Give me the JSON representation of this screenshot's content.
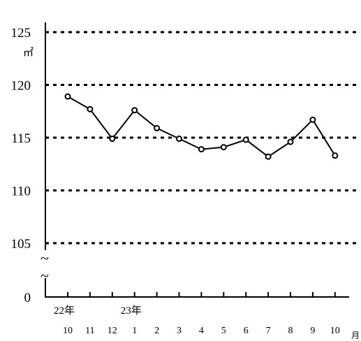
{
  "chart_data": {
    "type": "line",
    "title": "",
    "xlabel": "",
    "ylabel": "",
    "y_unit": "㎡",
    "x_unit": "月",
    "categories": [
      "10",
      "11",
      "12",
      "1",
      "2",
      "3",
      "4",
      "5",
      "6",
      "7",
      "8",
      "9",
      "10"
    ],
    "year_labels": [
      {
        "index": 0,
        "label": "22年"
      },
      {
        "index": 3,
        "label": "23年"
      }
    ],
    "series": [
      {
        "values": [
          118.9,
          117.7,
          114.9,
          117.6,
          115.9,
          114.9,
          113.9,
          114.1,
          114.8,
          113.2,
          114.6,
          116.7,
          113.3
        ]
      }
    ],
    "y_ticks": [
      "125",
      "120",
      "115",
      "110",
      "105",
      "0"
    ],
    "ylim": [
      105,
      125
    ],
    "axis_break": true,
    "grid": "dashed horizontal",
    "colors": {
      "line": "#000000",
      "marker_fill": "#ffffff",
      "grid": "#000000"
    }
  }
}
